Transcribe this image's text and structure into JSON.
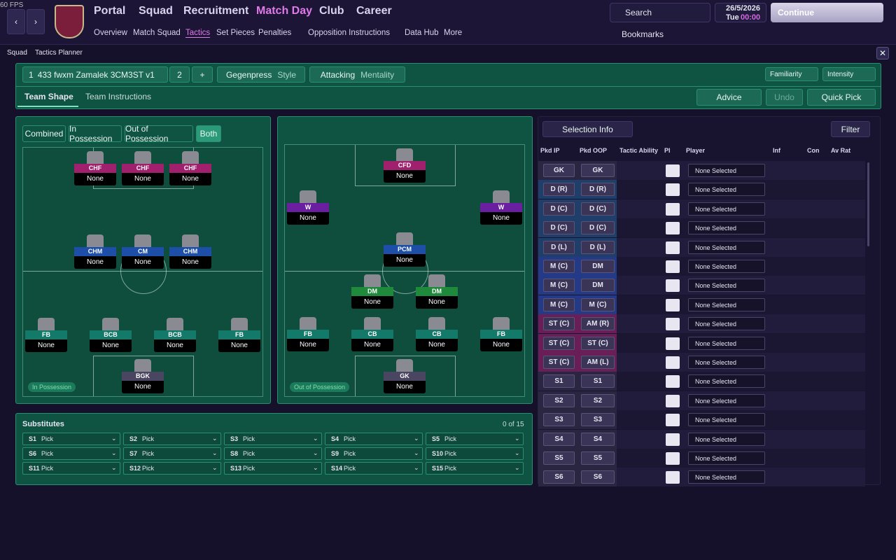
{
  "fps": "60 FPS",
  "nav": {
    "main": [
      "Portal",
      "Squad",
      "Recruitment",
      "Match Day",
      "Club",
      "Career"
    ],
    "sub": [
      "Overview",
      "Match Squad",
      "Tactics",
      "Set Pieces",
      "Penalties",
      "Opposition Instructions",
      "Data Hub",
      "More"
    ]
  },
  "search": "Search",
  "date": "26/5/2026",
  "day": "Tue",
  "time": "00:00",
  "continue": "Continue",
  "bookmarks": "Bookmarks",
  "breadcrumb": [
    "Squad",
    "Tactics Planner"
  ],
  "tactic": {
    "slot1": "1",
    "name": "433 fwxm Zamalek 3CM3ST v1",
    "slot2": "2",
    "plus": "+",
    "style": "Gegenpress",
    "style_label": "Style",
    "mentality": "Attacking",
    "mentality_label": "Mentality",
    "familiarity": "Familiarity",
    "intensity": "Intensity"
  },
  "tabs": [
    "Team Shape",
    "Team Instructions"
  ],
  "actions": [
    "Advice",
    "Undo",
    "Quick Pick"
  ],
  "view_filters": [
    "Combined",
    "In Possession",
    "Out of Possession",
    "Both"
  ],
  "pitches": [
    {
      "label": "In Possession",
      "players": [
        {
          "role": "CHF",
          "name": "None",
          "color": "#a0206e"
        },
        {
          "role": "CHF",
          "name": "None",
          "color": "#a0206e"
        },
        {
          "role": "CHF",
          "name": "None",
          "color": "#a0206e"
        },
        {
          "role": "CHM",
          "name": "None",
          "color": "#1d4fa8"
        },
        {
          "role": "CM",
          "name": "None",
          "color": "#1d4fa8"
        },
        {
          "role": "CHM",
          "name": "None",
          "color": "#1d4fa8"
        },
        {
          "role": "FB",
          "name": "None",
          "color": "#137a6a"
        },
        {
          "role": "BCB",
          "name": "None",
          "color": "#137a6a"
        },
        {
          "role": "BCB",
          "name": "None",
          "color": "#137a6a"
        },
        {
          "role": "FB",
          "name": "None",
          "color": "#137a6a"
        },
        {
          "role": "BGK",
          "name": "None",
          "color": "#4a4560"
        }
      ]
    },
    {
      "label": "Out of Possession",
      "players": [
        {
          "role": "CFD",
          "name": "None",
          "color": "#a0206e"
        },
        {
          "role": "W",
          "name": "None",
          "color": "#6a1fa0"
        },
        {
          "role": "W",
          "name": "None",
          "color": "#6a1fa0"
        },
        {
          "role": "PCM",
          "name": "None",
          "color": "#1d4fa8"
        },
        {
          "role": "DM",
          "name": "None",
          "color": "#1f8a3c"
        },
        {
          "role": "DM",
          "name": "None",
          "color": "#1f8a3c"
        },
        {
          "role": "FB",
          "name": "None",
          "color": "#137a6a"
        },
        {
          "role": "CB",
          "name": "None",
          "color": "#137a6a"
        },
        {
          "role": "CB",
          "name": "None",
          "color": "#137a6a"
        },
        {
          "role": "FB",
          "name": "None",
          "color": "#137a6a"
        },
        {
          "role": "GK",
          "name": "None",
          "color": "#4a4560"
        }
      ]
    }
  ],
  "substitutes": {
    "title": "Substitutes",
    "count": "0 of 15",
    "slots": [
      {
        "id": "S1",
        "value": "Pick"
      },
      {
        "id": "S2",
        "value": "Pick"
      },
      {
        "id": "S3",
        "value": "Pick"
      },
      {
        "id": "S4",
        "value": "Pick"
      },
      {
        "id": "S5",
        "value": "Pick"
      },
      {
        "id": "S6",
        "value": "Pick"
      },
      {
        "id": "S7",
        "value": "Pick"
      },
      {
        "id": "S8",
        "value": "Pick"
      },
      {
        "id": "S9",
        "value": "Pick"
      },
      {
        "id": "S10",
        "value": "Pick"
      },
      {
        "id": "S11",
        "value": "Pick"
      },
      {
        "id": "S12",
        "value": "Pick"
      },
      {
        "id": "S13",
        "value": "Pick"
      },
      {
        "id": "S14",
        "value": "Pick"
      },
      {
        "id": "S15",
        "value": "Pick"
      }
    ]
  },
  "selection": {
    "button": "Selection Info",
    "filter": "Filter",
    "columns": [
      "Pkd IP",
      "Pkd OOP",
      "Tactic Ability",
      "PI",
      "Player",
      "Inf",
      "Con",
      "Av Rat"
    ],
    "rows": [
      {
        "ip": "GK",
        "oop": "GK",
        "player": "None Selected",
        "color": "#2a2540"
      },
      {
        "ip": "D (R)",
        "oop": "D (R)",
        "player": "None Selected",
        "color": "#1f3e6a"
      },
      {
        "ip": "D (C)",
        "oop": "D (C)",
        "player": "None Selected",
        "color": "#1f3e6a"
      },
      {
        "ip": "D (C)",
        "oop": "D (C)",
        "player": "None Selected",
        "color": "#1f3e6a"
      },
      {
        "ip": "D (L)",
        "oop": "D (L)",
        "player": "None Selected",
        "color": "#1f3e6a"
      },
      {
        "ip": "M (C)",
        "oop": "DM",
        "player": "None Selected",
        "color": "#253a86"
      },
      {
        "ip": "M (C)",
        "oop": "DM",
        "player": "None Selected",
        "color": "#253a86"
      },
      {
        "ip": "M (C)",
        "oop": "M (C)",
        "player": "None Selected",
        "color": "#253a86"
      },
      {
        "ip": "ST (C)",
        "oop": "AM (R)",
        "player": "None Selected",
        "color": "#6a1e58"
      },
      {
        "ip": "ST (C)",
        "oop": "ST (C)",
        "player": "None Selected",
        "color": "#6a1e58"
      },
      {
        "ip": "ST (C)",
        "oop": "AM (L)",
        "player": "None Selected",
        "color": "#6a1e58"
      },
      {
        "ip": "S1",
        "oop": "S1",
        "player": "None Selected",
        "color": "#2a2540"
      },
      {
        "ip": "S2",
        "oop": "S2",
        "player": "None Selected",
        "color": "#2a2540"
      },
      {
        "ip": "S3",
        "oop": "S3",
        "player": "None Selected",
        "color": "#2a2540"
      },
      {
        "ip": "S4",
        "oop": "S4",
        "player": "None Selected",
        "color": "#2a2540"
      },
      {
        "ip": "S5",
        "oop": "S5",
        "player": "None Selected",
        "color": "#2a2540"
      },
      {
        "ip": "S6",
        "oop": "S6",
        "player": "None Selected",
        "color": "#2a2540"
      }
    ]
  }
}
